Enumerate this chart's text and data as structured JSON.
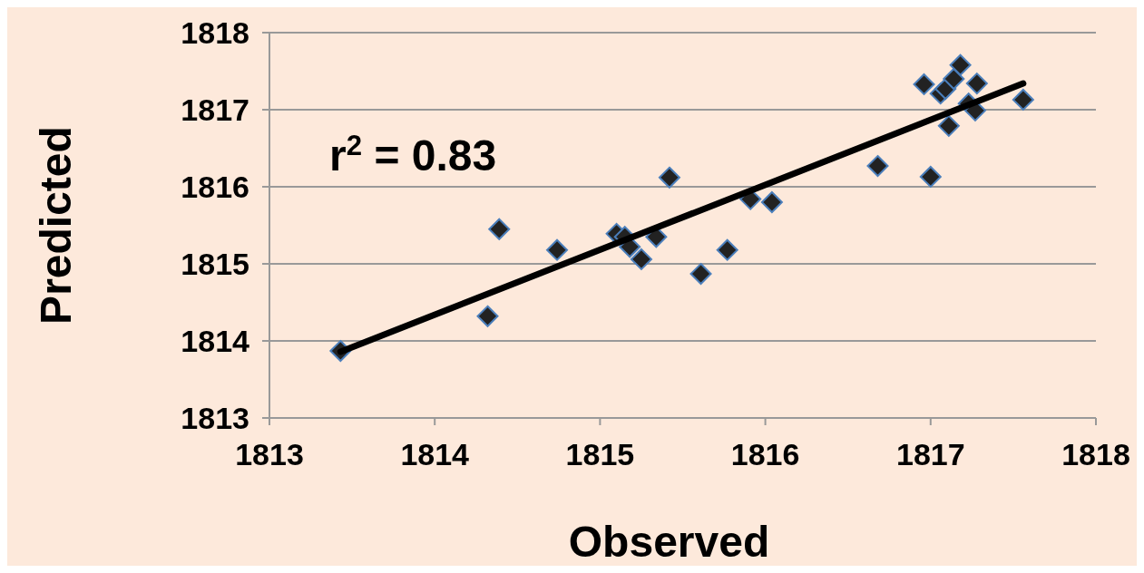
{
  "chart_data": {
    "type": "scatter",
    "xlabel": "Observed",
    "ylabel": "Predicted",
    "xlim": [
      1813,
      1818
    ],
    "xticks": [
      1813,
      1814,
      1815,
      1816,
      1817,
      1818
    ],
    "ylim": [
      1813,
      1818
    ],
    "yticks": [
      1813,
      1814,
      1815,
      1816,
      1817,
      1818
    ],
    "grid": "y",
    "marker": "diamond",
    "annotations": [
      {
        "text": "r$^{2}$ = 0.83"
      }
    ],
    "series": [
      {
        "color": "#222222",
        "x": [
          1813.43,
          1814.32,
          1814.39,
          1814.74,
          1815.1,
          1815.15,
          1815.18,
          1815.25,
          1815.34,
          1815.42,
          1815.61,
          1815.77,
          1815.91,
          1816.04,
          1816.68,
          1816.96,
          1817.0,
          1817.06,
          1817.09,
          1817.11,
          1817.14,
          1817.18,
          1817.23,
          1817.27,
          1817.28,
          1817.56
        ],
        "values": [
          1813.87,
          1814.32,
          1815.45,
          1815.18,
          1815.39,
          1815.35,
          1815.22,
          1815.06,
          1815.35,
          1816.12,
          1814.87,
          1815.18,
          1815.84,
          1815.8,
          1816.27,
          1817.33,
          1816.13,
          1817.21,
          1817.27,
          1816.79,
          1817.4,
          1817.58,
          1817.08,
          1816.99,
          1817.34,
          1817.13
        ]
      },
      {
        "type": "line",
        "color": "#000000",
        "marker": "none",
        "x": [
          1813.43,
          1817.56
        ],
        "values": [
          1813.86,
          1817.34
        ]
      }
    ]
  }
}
